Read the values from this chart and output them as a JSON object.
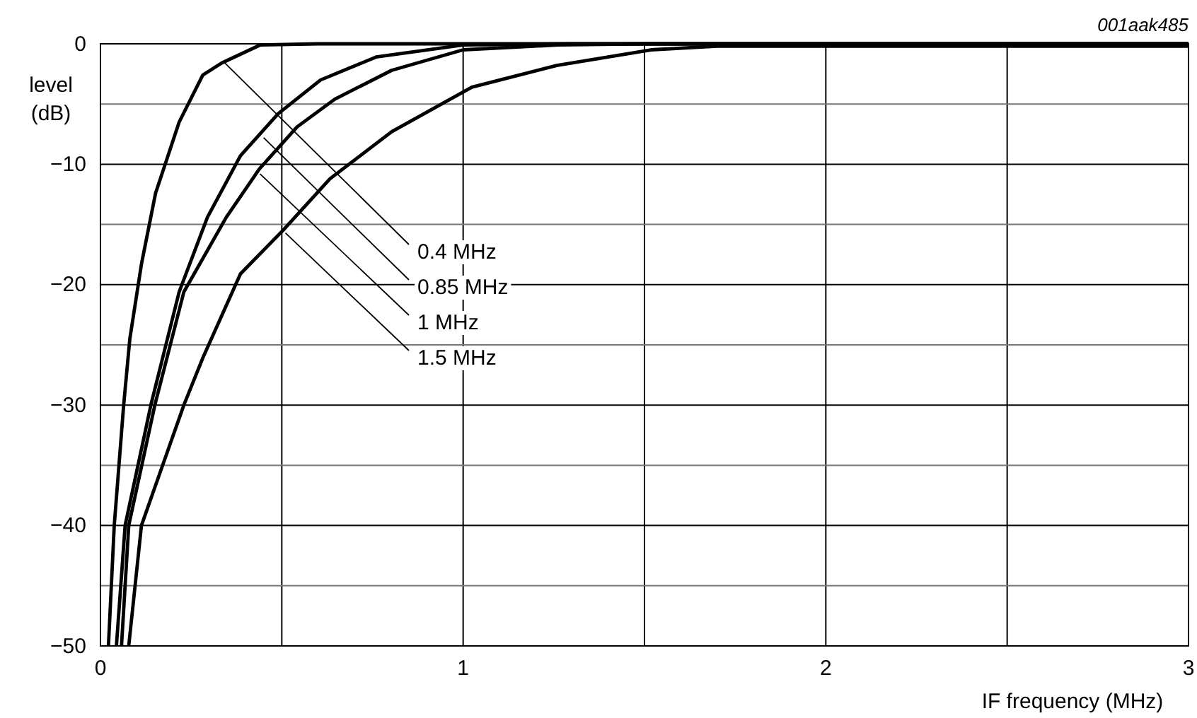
{
  "chart_data": {
    "type": "line",
    "xlabel": "IF frequency (MHz)",
    "ylabel": "level\n(dB)",
    "annotations": [
      "001aak485",
      {
        "text": "0.4 MHz",
        "x": 0.34,
        "y": -1.5
      },
      {
        "text": "0.85 MHz",
        "x": 0.45,
        "y": -7.8
      },
      {
        "text": "1 MHz",
        "x": 0.44,
        "y": -10.8
      },
      {
        "text": "1.5 MHz",
        "x": 0.51,
        "y": -15.7
      }
    ],
    "xlim": [
      0,
      3
    ],
    "ylim": [
      -50,
      0
    ],
    "xticks": [
      0,
      {
        "value": 0.5,
        "label": null
      },
      1,
      {
        "value": 1.5,
        "label": null
      },
      2,
      {
        "value": 2.5,
        "label": null
      },
      3
    ],
    "yticks": [
      {
        "value": -50,
        "label": "−50"
      },
      {
        "value": -45,
        "label": null
      },
      {
        "value": -40,
        "label": "−40"
      },
      {
        "value": -35,
        "label": null
      },
      {
        "value": -30,
        "label": "−30"
      },
      {
        "value": -25,
        "label": null
      },
      {
        "value": -20,
        "label": "−20"
      },
      {
        "value": -15,
        "label": null
      },
      {
        "value": -10,
        "label": "−10"
      },
      {
        "value": -5,
        "label": null
      },
      0
    ],
    "grid": true,
    "marker": "none",
    "line_style": "solid",
    "series": [
      {
        "color": "#000000",
        "x": [
          0.022,
          0.038,
          0.064,
          0.081,
          0.113,
          0.152,
          0.217,
          0.282,
          0.334,
          0.44,
          0.6,
          3
        ],
        "values": [
          -50,
          -40,
          -30,
          -24.5,
          -18.3,
          -12.4,
          -6.5,
          -2.6,
          -1.6,
          -0.1,
          0,
          0
        ]
      },
      {
        "color": "#000000",
        "x": [
          0.044,
          0.068,
          0.139,
          0.217,
          0.295,
          0.386,
          0.49,
          0.607,
          0.76,
          1.0,
          1.3,
          3
        ],
        "values": [
          -50,
          -40,
          -30,
          -20.6,
          -14.4,
          -9.3,
          -5.8,
          -3.0,
          -1.1,
          -0.1,
          0,
          0
        ]
      },
      {
        "color": "#000000",
        "x": [
          0.058,
          0.078,
          0.15,
          0.23,
          0.347,
          0.438,
          0.542,
          0.646,
          0.803,
          1.0,
          1.26,
          1.5,
          3
        ],
        "values": [
          -50,
          -40,
          -30,
          -20.6,
          -14.4,
          -10.4,
          -6.9,
          -4.6,
          -2.2,
          -0.5,
          -0.1,
          0,
          0
        ]
      },
      {
        "color": "#000000",
        "x": [
          0.078,
          0.113,
          0.148,
          0.23,
          0.282,
          0.386,
          0.503,
          0.633,
          0.803,
          1.024,
          1.258,
          1.518,
          1.7,
          3
        ],
        "values": [
          -50,
          -40,
          -37,
          -30,
          -26.1,
          -19.1,
          -15.5,
          -11.2,
          -7.3,
          -3.6,
          -1.8,
          -0.5,
          -0.2,
          -0.2
        ]
      }
    ]
  }
}
